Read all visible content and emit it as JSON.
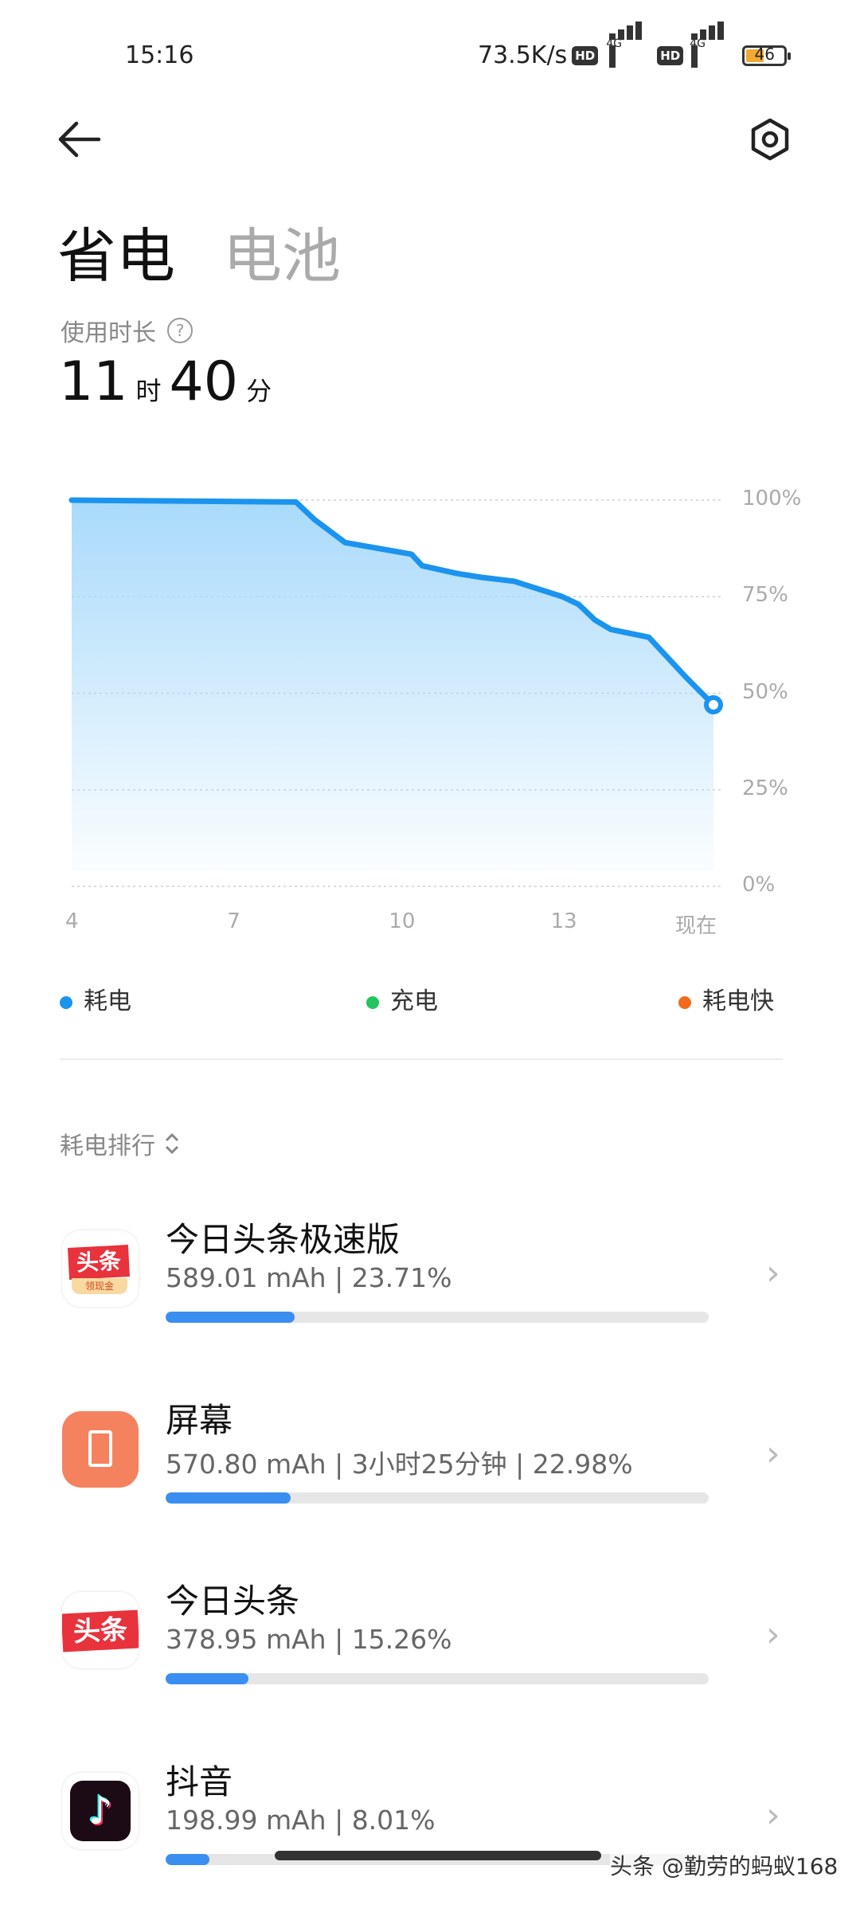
{
  "status_bar": {
    "time": "15:16",
    "net_speed": "73.5K/s",
    "hd": "HD",
    "network": "4G",
    "battery": "46",
    "battery_color": "#f0a830"
  },
  "header": {
    "back_icon": "arrow-left-icon",
    "settings_icon": "hexagon-settings-icon"
  },
  "tabs": [
    {
      "label": "省电",
      "active": true
    },
    {
      "label": "电池",
      "active": false
    }
  ],
  "usage": {
    "label": "使用时长",
    "help_icon": "?",
    "hours": "11",
    "hours_unit": "时",
    "minutes": "40",
    "minutes_unit": "分"
  },
  "chart_data": {
    "type": "area",
    "x": [
      4,
      8.16,
      8.5,
      9.07,
      10.3,
      10.5,
      11.15,
      11.6,
      12.2,
      13.1,
      13.4,
      13.7,
      14.0,
      14.7,
      15.0,
      15.4,
      15.9
    ],
    "y": [
      100,
      99.5,
      95,
      89,
      86,
      83,
      81,
      80,
      79,
      75,
      73,
      69,
      66.5,
      64.5,
      60,
      54,
      47
    ],
    "xlim": [
      4,
      15.9
    ],
    "ylim": [
      0,
      100
    ],
    "x_ticks": [
      {
        "value": 4,
        "label": "4"
      },
      {
        "value": 7,
        "label": "7"
      },
      {
        "value": 10,
        "label": "10"
      },
      {
        "value": 13,
        "label": "13"
      },
      {
        "value": 15.9,
        "label": "现在"
      }
    ],
    "y_ticks": [
      {
        "value": 100,
        "label": "100%"
      },
      {
        "value": 75,
        "label": "75%"
      },
      {
        "value": 50,
        "label": "50%"
      },
      {
        "value": 25,
        "label": "25%"
      },
      {
        "value": 0,
        "label": "0%"
      }
    ],
    "grid": true,
    "line_color": "#1a94ee",
    "legend": [
      {
        "label": "耗电",
        "color": "#1a94ee"
      },
      {
        "label": "充电",
        "color": "#22c55e"
      },
      {
        "label": "耗电快",
        "color": "#f26a1b"
      }
    ]
  },
  "ranking": {
    "label": "耗电排行",
    "items": [
      {
        "name": "今日头条极速版",
        "detail": "589.01 mAh | 23.71%",
        "percent": 23.71,
        "icon": "toutiao-lite-icon",
        "icon_text": "头条",
        "icon_badge": "领现金"
      },
      {
        "name": "屏幕",
        "detail": "570.80 mAh | 3小时25分钟 | 22.98%",
        "percent": 22.98,
        "icon": "screen-icon"
      },
      {
        "name": "今日头条",
        "detail": "378.95 mAh | 15.26%",
        "percent": 15.26,
        "icon": "toutiao-icon",
        "icon_text": "头条"
      },
      {
        "name": "抖音",
        "detail": "198.99 mAh | 8.01%",
        "percent": 8.01,
        "icon": "douyin-icon"
      }
    ]
  },
  "watermark": "头条 @勤劳的蚂蚁168"
}
